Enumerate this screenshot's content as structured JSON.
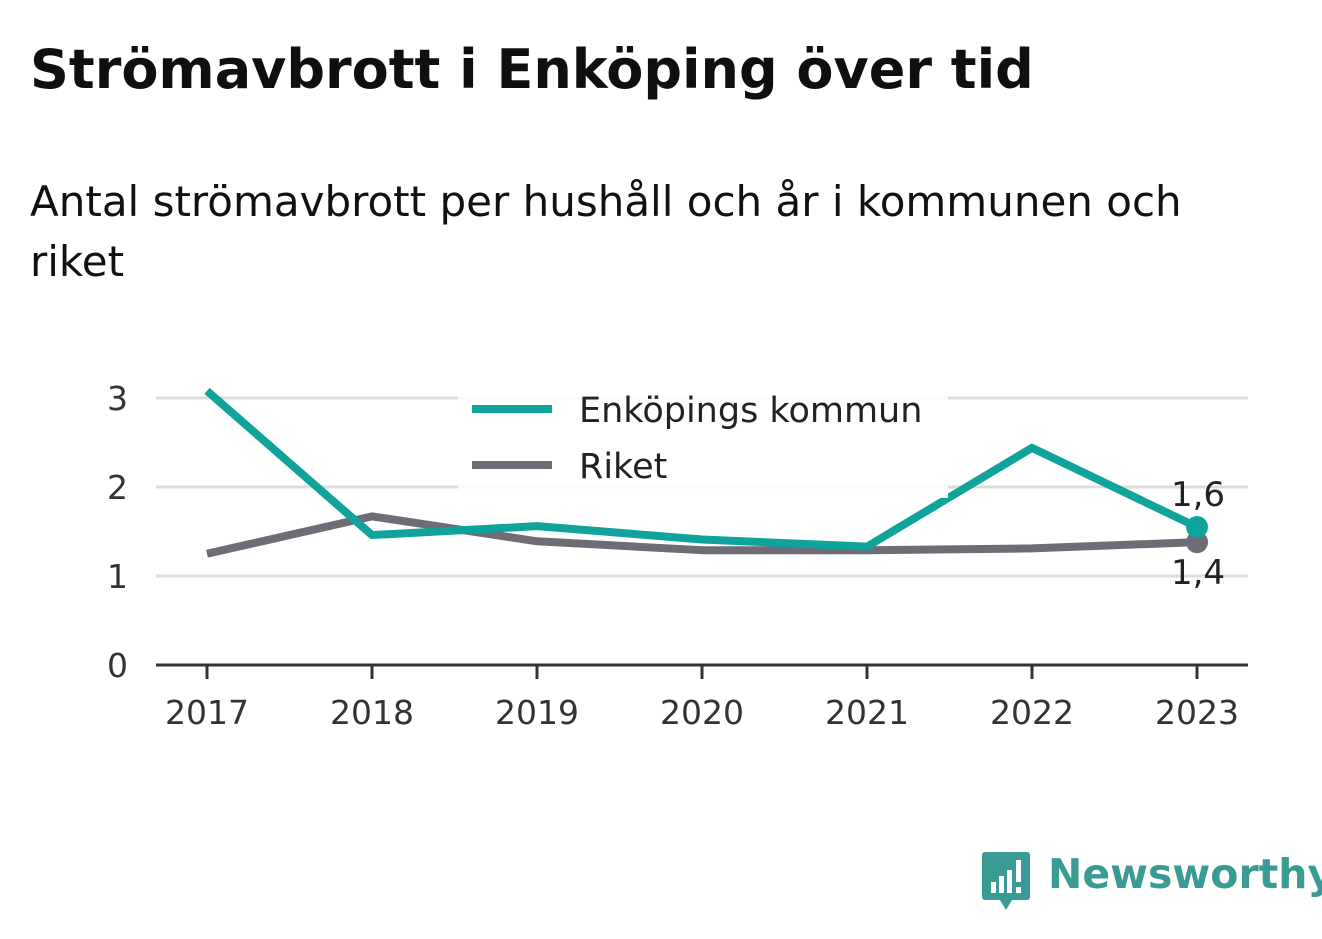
{
  "header": {
    "title": "Strömavbrott i Enköping över tid",
    "subtitle": "Antal strömavbrott per hushåll och år i kommunen och riket"
  },
  "brand": {
    "name": "Newsworthy",
    "icon": "newsworthy-logo-icon",
    "color": "#3a9b95"
  },
  "chart_data": {
    "type": "line",
    "title": "Strömavbrott i Enköping över tid",
    "subtitle": "Antal strömavbrott per hushåll och år i kommunen och riket",
    "xlabel": "",
    "ylabel": "",
    "x": [
      "2017",
      "2018",
      "2019",
      "2020",
      "2021",
      "2022",
      "2023"
    ],
    "ylim": [
      0,
      3
    ],
    "yticks": [
      "0",
      "1",
      "2",
      "3"
    ],
    "grid": true,
    "legend_position": "top-center",
    "series": [
      {
        "name": "Enköpings kommun",
        "color": "#0fa39b",
        "values": [
          3.08,
          1.46,
          1.56,
          1.41,
          1.33,
          2.44,
          1.55
        ],
        "end_label": "1,6"
      },
      {
        "name": "Riket",
        "color": "#6e6d75",
        "values": [
          1.25,
          1.67,
          1.39,
          1.29,
          1.29,
          1.31,
          1.38
        ],
        "end_label": "1,4"
      }
    ]
  }
}
